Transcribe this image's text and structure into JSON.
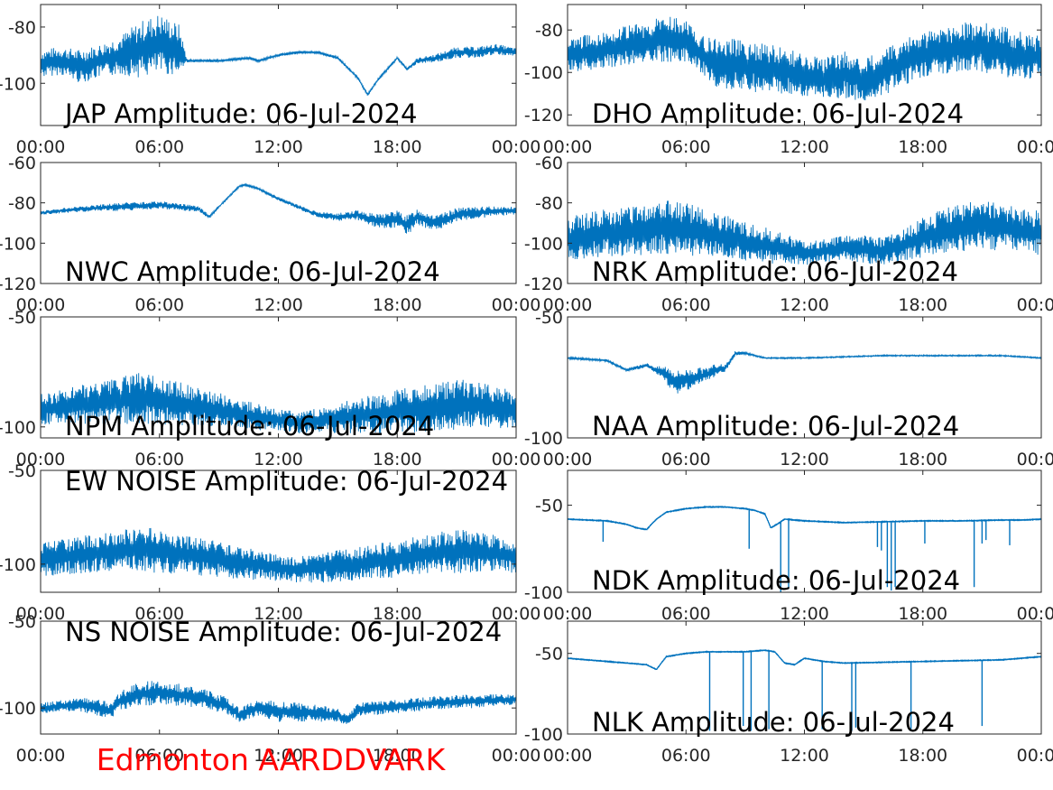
{
  "station_label": "Edmonton AARDDVARK",
  "colors": {
    "line": "#0072bd",
    "axis": "#262626",
    "label": "#000000",
    "station": "#ff0000"
  },
  "chart_data": [
    {
      "id": "jap",
      "type": "line",
      "title": "JAP Amplitude: 06-Jul-2024",
      "x_ticks": [
        "00:00",
        "06:00",
        "12:00",
        "18:00",
        "00:00"
      ],
      "y_ticks": [
        "-80",
        "-100"
      ],
      "y_tick_values": [
        -80,
        -100
      ],
      "ylim": [
        -115,
        -72
      ],
      "xlim_hours": [
        0,
        24
      ],
      "series": [
        {
          "style": "noisy",
          "x": [
            0,
            1,
            2,
            3,
            4,
            5,
            6,
            7,
            7.4,
            7.6,
            9,
            10.5,
            11,
            12,
            13,
            14,
            15,
            16,
            16.5,
            17,
            18,
            18.5,
            19,
            20,
            21,
            22,
            23,
            24
          ],
          "y": [
            -93,
            -92,
            -94,
            -92,
            -90,
            -88,
            -86,
            -88,
            -92,
            -92,
            -92,
            -91,
            -92,
            -90,
            -89,
            -89,
            -91,
            -98,
            -104,
            -99,
            -91,
            -95,
            -92,
            -91,
            -89,
            -89,
            -88,
            -89
          ],
          "band": [
            10,
            10,
            12,
            12,
            14,
            20,
            22,
            18,
            1,
            1,
            1,
            1,
            1,
            1,
            1,
            1,
            1,
            1,
            1,
            1,
            1,
            1,
            2,
            3,
            4,
            4,
            4,
            3
          ]
        }
      ]
    },
    {
      "id": "dho",
      "type": "line",
      "title": "DHO Amplitude: 06-Jul-2024",
      "x_ticks": [
        "00:00",
        "06:00",
        "12:00",
        "18:00",
        "00:00"
      ],
      "y_ticks": [
        "-80",
        "-100",
        "-120"
      ],
      "y_tick_values": [
        -80,
        -100,
        -120
      ],
      "ylim": [
        -125,
        -68
      ],
      "xlim_hours": [
        0,
        24
      ],
      "series": [
        {
          "style": "noisy",
          "x": [
            0,
            2,
            4,
            5,
            6,
            7,
            7.5,
            9,
            11,
            12,
            13,
            14,
            15,
            16,
            17,
            18,
            19,
            20,
            21,
            22,
            23,
            24
          ],
          "y": [
            -92,
            -89,
            -86,
            -84,
            -85,
            -93,
            -95,
            -97,
            -99,
            -102,
            -103,
            -101,
            -104,
            -100,
            -95,
            -92,
            -90,
            -88,
            -88,
            -90,
            -92,
            -93
          ],
          "band": [
            16,
            18,
            20,
            22,
            20,
            18,
            24,
            24,
            22,
            20,
            20,
            22,
            20,
            22,
            22,
            22,
            24,
            24,
            24,
            24,
            22,
            20
          ]
        }
      ]
    },
    {
      "id": "nwc",
      "type": "line",
      "title": "NWC Amplitude: 06-Jul-2024",
      "x_ticks": [
        "00:00",
        "06:00",
        "12:00",
        "18:00",
        "00:00"
      ],
      "y_ticks": [
        "-60",
        "-80",
        "-100",
        "-120"
      ],
      "y_tick_values": [
        -60,
        -80,
        -100,
        -120
      ],
      "ylim": [
        -120,
        -60
      ],
      "xlim_hours": [
        0,
        24
      ],
      "series": [
        {
          "style": "noisy",
          "x": [
            0,
            2,
            4,
            6,
            8,
            8.5,
            9,
            10,
            10.3,
            11,
            12,
            13,
            14,
            15,
            16,
            17,
            18,
            18.5,
            19,
            20,
            21,
            22,
            23,
            24
          ],
          "y": [
            -85,
            -83,
            -82,
            -81,
            -83,
            -87,
            -82,
            -72,
            -71,
            -73,
            -78,
            -82,
            -86,
            -87,
            -86,
            -89,
            -88,
            -91,
            -87,
            -90,
            -86,
            -85,
            -84,
            -84
          ],
          "band": [
            2,
            3,
            4,
            4,
            3,
            2,
            1,
            1,
            1,
            1,
            2,
            2,
            3,
            4,
            5,
            7,
            9,
            10,
            9,
            8,
            7,
            6,
            5,
            4
          ]
        }
      ]
    },
    {
      "id": "nrk",
      "type": "line",
      "title": "NRK Amplitude: 06-Jul-2024",
      "x_ticks": [
        "00:00",
        "06:00",
        "12:00",
        "18:00",
        "00:00"
      ],
      "y_ticks": [
        "-60",
        "-80",
        "-100",
        "-120"
      ],
      "y_tick_values": [
        -60,
        -80,
        -100,
        -120
      ],
      "ylim": [
        -120,
        -60
      ],
      "xlim_hours": [
        0,
        24
      ],
      "series": [
        {
          "style": "noisy",
          "x": [
            0,
            2,
            4,
            5,
            6,
            7,
            8,
            10,
            12,
            13,
            14,
            15,
            16,
            17,
            18,
            19,
            20,
            21,
            22,
            23,
            24
          ],
          "y": [
            -98,
            -95,
            -93,
            -92,
            -93,
            -95,
            -97,
            -101,
            -105,
            -104,
            -102,
            -103,
            -104,
            -101,
            -97,
            -94,
            -92,
            -91,
            -92,
            -94,
            -95
          ],
          "band": [
            22,
            24,
            26,
            28,
            26,
            24,
            22,
            18,
            12,
            12,
            12,
            14,
            14,
            16,
            20,
            22,
            24,
            24,
            24,
            22,
            22
          ]
        }
      ]
    },
    {
      "id": "npm",
      "type": "line",
      "title": "NPM Amplitude: 06-Jul-2024",
      "x_ticks": [
        "00:00",
        "06:00",
        "12:00",
        "18:00",
        "00:00"
      ],
      "y_ticks": [
        "-50",
        "-100"
      ],
      "y_tick_values": [
        -50,
        -100
      ],
      "ylim": [
        -105,
        -50
      ],
      "xlim_hours": [
        0,
        24
      ],
      "series": [
        {
          "style": "noisy",
          "x": [
            0,
            2,
            4,
            5,
            6,
            8,
            10,
            12,
            13,
            14,
            16,
            18,
            20,
            21,
            22,
            24
          ],
          "y": [
            -92,
            -90,
            -88,
            -87,
            -88,
            -91,
            -94,
            -97,
            -98,
            -97,
            -95,
            -93,
            -91,
            -90,
            -90,
            -93
          ],
          "band": [
            14,
            18,
            22,
            24,
            22,
            18,
            14,
            10,
            10,
            12,
            16,
            20,
            22,
            24,
            22,
            18
          ]
        }
      ]
    },
    {
      "id": "naa",
      "type": "line",
      "title": "NAA Amplitude: 06-Jul-2024",
      "x_ticks": [
        "00:00",
        "06:00",
        "12:00",
        "18:00",
        "00:00"
      ],
      "y_ticks": [
        "-50",
        "-100"
      ],
      "y_tick_values": [
        -50,
        -100
      ],
      "ylim": [
        -100,
        -50
      ],
      "xlim_hours": [
        0,
        24
      ],
      "series": [
        {
          "style": "noisy",
          "x": [
            0,
            1,
            2,
            2.5,
            3,
            4,
            4.5,
            5,
            5.5,
            6,
            6.5,
            7,
            7.5,
            8,
            8.5,
            9,
            10,
            12,
            14,
            16,
            18,
            20,
            22,
            23,
            24
          ],
          "y": [
            -67,
            -67.5,
            -68,
            -70,
            -72,
            -70,
            -72,
            -74,
            -77,
            -76,
            -75,
            -74,
            -72,
            -71,
            -65,
            -65,
            -67,
            -67,
            -66.5,
            -66,
            -66,
            -66,
            -66,
            -66.5,
            -67
          ],
          "band": [
            1,
            1,
            1,
            1,
            1,
            2,
            3,
            8,
            10,
            9,
            8,
            6,
            5,
            3,
            2,
            1,
            0.6,
            0.6,
            0.6,
            0.6,
            0.6,
            0.6,
            0.6,
            0.6,
            0.6
          ]
        }
      ]
    },
    {
      "id": "ew_noise",
      "type": "line",
      "title": "EW NOISE Amplitude: 06-Jul-2024",
      "x_ticks": [
        "00:00",
        "06:00",
        "12:00",
        "18:00",
        "00:00"
      ],
      "y_ticks": [
        "-50",
        "-100"
      ],
      "y_tick_values": [
        -50,
        -100
      ],
      "ylim": [
        -115,
        -50
      ],
      "xlim_hours": [
        0,
        24
      ],
      "series": [
        {
          "style": "noisy",
          "x": [
            0,
            2,
            4,
            5,
            6,
            8,
            10,
            12,
            13,
            14,
            16,
            18,
            20,
            21,
            22,
            24
          ],
          "y": [
            -98,
            -95,
            -93,
            -92,
            -93,
            -96,
            -99,
            -102,
            -103,
            -102,
            -100,
            -97,
            -94,
            -93,
            -93,
            -96
          ],
          "band": [
            18,
            20,
            22,
            24,
            24,
            20,
            18,
            14,
            14,
            16,
            18,
            20,
            22,
            24,
            22,
            18
          ]
        }
      ]
    },
    {
      "id": "ndk",
      "type": "line",
      "title": "NDK Amplitude: 06-Jul-2024",
      "x_ticks": [
        "00:00",
        "06:00",
        "12:00",
        "18:00",
        "00:00"
      ],
      "y_ticks": [
        "-50",
        "-100"
      ],
      "y_tick_values": [
        -50,
        -100
      ],
      "ylim": [
        -100,
        -30
      ],
      "xlim_hours": [
        0,
        24
      ],
      "series": [
        {
          "style": "spiky",
          "x": [
            0,
            1,
            2,
            3,
            3.5,
            4,
            4.5,
            5,
            6,
            7,
            8,
            9,
            9.5,
            10,
            10.3,
            10.6,
            11,
            12,
            14,
            16,
            18,
            20,
            22,
            23,
            24
          ],
          "y": [
            -58,
            -58.5,
            -59,
            -61,
            -63,
            -64,
            -58,
            -54,
            -52,
            -51,
            -51,
            -52,
            -53,
            -55,
            -63,
            -61,
            -58,
            -59,
            -60,
            -59.5,
            -59,
            -59,
            -58.5,
            -58.5,
            -58
          ],
          "band": [
            0.5,
            0.5,
            0.5,
            0.5,
            0.5,
            0.5,
            0.5,
            0.5,
            0.5,
            0.5,
            0.5,
            0.5,
            0.5,
            0.5,
            0.5,
            0.5,
            0.5,
            0.5,
            0.5,
            0.5,
            0.5,
            0.5,
            0.5,
            0.5,
            0.5
          ],
          "spikes": [
            [
              1.8,
              -71
            ],
            [
              9.2,
              -75
            ],
            [
              10.8,
              -100
            ],
            [
              11.2,
              -98
            ],
            [
              15.7,
              -74
            ],
            [
              15.9,
              -76
            ],
            [
              16.2,
              -97
            ],
            [
              16.4,
              -99
            ],
            [
              16.6,
              -97
            ],
            [
              18.1,
              -72
            ],
            [
              20.6,
              -97
            ],
            [
              21,
              -72
            ],
            [
              21.2,
              -70
            ],
            [
              22.4,
              -73
            ]
          ]
        }
      ]
    },
    {
      "id": "ns_noise",
      "type": "line",
      "title": "NS NOISE Amplitude: 06-Jul-2024",
      "x_ticks": [
        "00:00",
        "06:00",
        "12:00",
        "18:00",
        "00:00"
      ],
      "y_ticks": [
        "-50",
        "-100"
      ],
      "y_tick_values": [
        -50,
        -100
      ],
      "ylim": [
        -115,
        -50
      ],
      "xlim_hours": [
        0,
        24
      ],
      "series": [
        {
          "style": "noisy",
          "x": [
            0,
            2,
            3,
            3.5,
            4,
            5,
            6,
            8,
            9.5,
            10,
            11,
            12,
            14,
            15,
            15.5,
            16,
            17,
            18,
            20,
            22,
            24
          ],
          "y": [
            -100,
            -98,
            -100,
            -102,
            -96,
            -92,
            -91,
            -94,
            -99,
            -104,
            -100,
            -102,
            -103,
            -104,
            -107,
            -101,
            -100,
            -99,
            -97,
            -96,
            -95
          ],
          "band": [
            6,
            8,
            10,
            10,
            12,
            14,
            14,
            12,
            10,
            8,
            10,
            12,
            10,
            8,
            6,
            8,
            8,
            8,
            8,
            8,
            6
          ]
        }
      ]
    },
    {
      "id": "nlk",
      "type": "line",
      "title": "NLK Amplitude: 06-Jul-2024",
      "x_ticks": [
        "00:00",
        "06:00",
        "12:00",
        "18:00",
        "00:00"
      ],
      "y_ticks": [
        "-50",
        "-100"
      ],
      "y_tick_values": [
        -50,
        -100
      ],
      "ylim": [
        -100,
        -30
      ],
      "xlim_hours": [
        0,
        24
      ],
      "series": [
        {
          "style": "spiky",
          "x": [
            0,
            1,
            2,
            3,
            4,
            4.5,
            5,
            6,
            7,
            8,
            9,
            10,
            10.5,
            11,
            11.5,
            12,
            13,
            14,
            16,
            18,
            20,
            22,
            23,
            24
          ],
          "y": [
            -53,
            -54,
            -55,
            -56,
            -57,
            -60,
            -52,
            -50,
            -49,
            -49,
            -49,
            -48,
            -49,
            -56,
            -57,
            -53,
            -55,
            -56,
            -55.5,
            -55,
            -54.5,
            -54,
            -53,
            -52
          ],
          "band": [
            0.5,
            0.5,
            0.5,
            0.5,
            0.5,
            0.5,
            0.5,
            0.5,
            0.5,
            0.5,
            0.5,
            0.5,
            0.5,
            0.5,
            0.5,
            0.5,
            0.5,
            0.5,
            0.5,
            0.5,
            0.5,
            0.5,
            0.5,
            0.5
          ],
          "spikes": [
            [
              7.2,
              -98
            ],
            [
              8.9,
              -95
            ],
            [
              9.3,
              -98
            ],
            [
              10.2,
              -97
            ],
            [
              12.9,
              -97
            ],
            [
              14.4,
              -98
            ],
            [
              14.6,
              -96
            ],
            [
              17.4,
              -97
            ],
            [
              21,
              -95
            ]
          ]
        }
      ]
    }
  ]
}
